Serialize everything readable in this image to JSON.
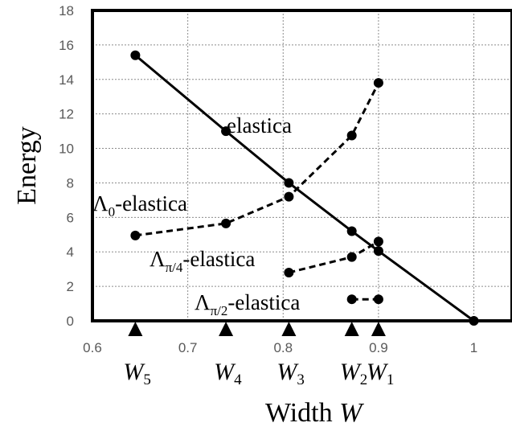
{
  "chart_data": {
    "type": "line",
    "xlabel": "Width W",
    "ylabel": "Energy",
    "xlim": [
      0.6,
      1.04
    ],
    "ylim": [
      0,
      18
    ],
    "grid": true,
    "x_ticks": [
      "0.6",
      "0.7",
      "0.8",
      "0.9",
      "1"
    ],
    "y_ticks": [
      "0",
      "2",
      "4",
      "6",
      "8",
      "10",
      "12",
      "14",
      "16",
      "18"
    ],
    "series": [
      {
        "name": "elastica",
        "style": "solid",
        "points": [
          [
            0.645,
            15.4
          ],
          [
            0.74,
            11.0
          ],
          [
            0.806,
            8.0
          ],
          [
            0.872,
            5.2
          ],
          [
            0.9,
            4.05
          ],
          [
            1.0,
            0.0
          ]
        ]
      },
      {
        "name": "Λ0-elastica",
        "style": "dashed",
        "points": [
          [
            0.645,
            4.95
          ],
          [
            0.74,
            5.65
          ],
          [
            0.806,
            7.2
          ],
          [
            0.872,
            10.75
          ],
          [
            0.9,
            13.8
          ]
        ]
      },
      {
        "name": "Λπ/4-elastica",
        "style": "dashed",
        "points": [
          [
            0.806,
            2.8
          ],
          [
            0.872,
            3.7
          ],
          [
            0.9,
            4.6
          ]
        ]
      },
      {
        "name": "Λπ/2-elastica",
        "style": "dashed",
        "points": [
          [
            0.872,
            1.25
          ],
          [
            0.9,
            1.25
          ]
        ]
      }
    ],
    "markers": [
      {
        "x": 0.9,
        "label": "W",
        "sub": "1"
      },
      {
        "x": 0.872,
        "label": "W",
        "sub": "2"
      },
      {
        "x": 0.806,
        "label": "W",
        "sub": "3"
      },
      {
        "x": 0.74,
        "label": "W",
        "sub": "4"
      },
      {
        "x": 0.645,
        "label": "W",
        "sub": "5"
      }
    ],
    "series_labels": {
      "elastica": {
        "text": "elastica"
      },
      "lambda0": {
        "main": "Λ",
        "sub": "0",
        "rest": "-elastica"
      },
      "lambda_pi4": {
        "main": "Λ",
        "sub": "π/4",
        "rest": "-elastica"
      },
      "lambda_pi2": {
        "main": "Λ",
        "sub": "π/2",
        "rest": "-elastica"
      }
    },
    "xlabel_parts": {
      "text": "Width ",
      "var": "W"
    }
  }
}
